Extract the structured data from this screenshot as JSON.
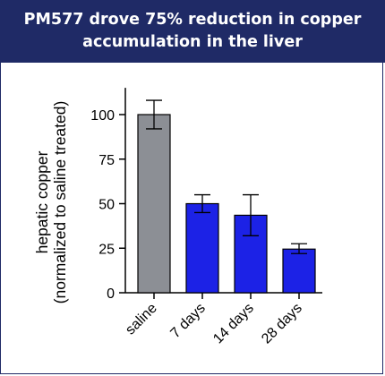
{
  "banner": {
    "line1": "PM577 drove 75% reduction in copper",
    "line2": "accumulation in the liver"
  },
  "chart_data": {
    "type": "bar",
    "title": "PM577 drove 75% reduction in copper accumulation in the liver",
    "ylabel_line1": "hepatic copper",
    "ylabel_line2": "(normalized to saline treated)",
    "xlabel": "",
    "ylim": [
      0,
      115
    ],
    "yticks": [
      0,
      25,
      50,
      75,
      100
    ],
    "categories": [
      "saline",
      "7 days",
      "14 days",
      "28 days"
    ],
    "values": [
      100,
      50,
      43.5,
      24.5
    ],
    "error_low": [
      92,
      45,
      32,
      22
    ],
    "error_high": [
      108,
      55,
      55,
      27.5
    ],
    "colors": [
      "#8c8f95",
      "#1c22e6",
      "#1c22e6",
      "#1c22e6"
    ],
    "grid": false,
    "legend": "none"
  }
}
